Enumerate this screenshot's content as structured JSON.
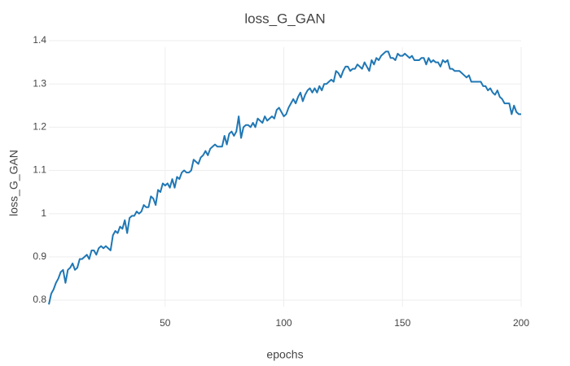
{
  "chart_data": {
    "type": "line",
    "title": "loss_G_GAN",
    "xlabel": "epochs",
    "ylabel": "loss_G_GAN",
    "x": [
      1,
      2,
      3,
      4,
      5,
      6,
      7,
      8,
      9,
      10,
      11,
      12,
      13,
      14,
      15,
      16,
      17,
      18,
      19,
      20,
      21,
      22,
      23,
      24,
      25,
      26,
      27,
      28,
      29,
      30,
      31,
      32,
      33,
      34,
      35,
      36,
      37,
      38,
      39,
      40,
      41,
      42,
      43,
      44,
      45,
      46,
      47,
      48,
      49,
      50,
      51,
      52,
      53,
      54,
      55,
      56,
      57,
      58,
      59,
      60,
      61,
      62,
      63,
      64,
      65,
      66,
      67,
      68,
      69,
      70,
      71,
      72,
      73,
      74,
      75,
      76,
      77,
      78,
      79,
      80,
      81,
      82,
      83,
      84,
      85,
      86,
      87,
      88,
      89,
      90,
      91,
      92,
      93,
      94,
      95,
      96,
      97,
      98,
      99,
      100,
      101,
      102,
      103,
      104,
      105,
      106,
      107,
      108,
      109,
      110,
      111,
      112,
      113,
      114,
      115,
      116,
      117,
      118,
      119,
      120,
      121,
      122,
      123,
      124,
      125,
      126,
      127,
      128,
      129,
      130,
      131,
      132,
      133,
      134,
      135,
      136,
      137,
      138,
      139,
      140,
      141,
      142,
      143,
      144,
      145,
      146,
      147,
      148,
      149,
      150,
      151,
      152,
      153,
      154,
      155,
      156,
      157,
      158,
      159,
      160,
      161,
      162,
      163,
      164,
      165,
      166,
      167,
      168,
      169,
      170,
      171,
      172,
      173,
      174,
      175,
      176,
      177,
      178,
      179,
      180,
      181,
      182,
      183,
      184,
      185,
      186,
      187,
      188,
      189,
      190,
      191,
      192,
      193,
      194,
      195,
      196,
      197,
      198,
      199,
      200
    ],
    "series": [
      {
        "name": "loss_G_GAN",
        "color": "#1f77b4",
        "values": [
          0.79,
          0.815,
          0.825,
          0.84,
          0.85,
          0.865,
          0.87,
          0.84,
          0.87,
          0.875,
          0.885,
          0.87,
          0.875,
          0.895,
          0.895,
          0.9,
          0.905,
          0.895,
          0.915,
          0.915,
          0.905,
          0.92,
          0.925,
          0.92,
          0.925,
          0.92,
          0.915,
          0.95,
          0.96,
          0.955,
          0.97,
          0.965,
          0.985,
          0.955,
          0.99,
          0.995,
          0.995,
          1.005,
          1.0,
          1.005,
          1.02,
          1.015,
          1.015,
          1.04,
          1.035,
          1.02,
          1.055,
          1.05,
          1.07,
          1.065,
          1.07,
          1.06,
          1.08,
          1.06,
          1.085,
          1.08,
          1.095,
          1.1,
          1.095,
          1.095,
          1.1,
          1.125,
          1.12,
          1.115,
          1.13,
          1.135,
          1.145,
          1.135,
          1.15,
          1.155,
          1.16,
          1.155,
          1.155,
          1.155,
          1.18,
          1.16,
          1.185,
          1.19,
          1.18,
          1.19,
          1.225,
          1.175,
          1.2,
          1.205,
          1.205,
          1.2,
          1.21,
          1.2,
          1.22,
          1.215,
          1.21,
          1.225,
          1.215,
          1.22,
          1.225,
          1.22,
          1.24,
          1.245,
          1.235,
          1.225,
          1.23,
          1.245,
          1.255,
          1.265,
          1.255,
          1.27,
          1.28,
          1.26,
          1.275,
          1.285,
          1.29,
          1.28,
          1.29,
          1.28,
          1.295,
          1.285,
          1.3,
          1.3,
          1.305,
          1.31,
          1.305,
          1.33,
          1.325,
          1.315,
          1.33,
          1.34,
          1.34,
          1.33,
          1.335,
          1.335,
          1.345,
          1.34,
          1.335,
          1.35,
          1.34,
          1.33,
          1.355,
          1.345,
          1.36,
          1.355,
          1.365,
          1.37,
          1.375,
          1.375,
          1.36,
          1.36,
          1.355,
          1.37,
          1.365,
          1.365,
          1.37,
          1.365,
          1.36,
          1.365,
          1.355,
          1.355,
          1.355,
          1.36,
          1.36,
          1.345,
          1.36,
          1.35,
          1.355,
          1.35,
          1.35,
          1.34,
          1.355,
          1.35,
          1.355,
          1.335,
          1.335,
          1.33,
          1.33,
          1.33,
          1.325,
          1.32,
          1.315,
          1.32,
          1.305,
          1.305,
          1.305,
          1.305,
          1.305,
          1.295,
          1.295,
          1.285,
          1.29,
          1.28,
          1.275,
          1.285,
          1.27,
          1.265,
          1.255,
          1.255,
          1.255,
          1.23,
          1.25,
          1.235,
          1.23,
          1.23
        ]
      }
    ],
    "xlim": [
      1,
      200
    ],
    "xticks": [
      50,
      100,
      150,
      200
    ],
    "ylim": [
      0.785,
      1.385
    ],
    "yticks": [
      0.8,
      0.9,
      1,
      1.1,
      1.2,
      1.3,
      1.4
    ],
    "grid": true
  }
}
